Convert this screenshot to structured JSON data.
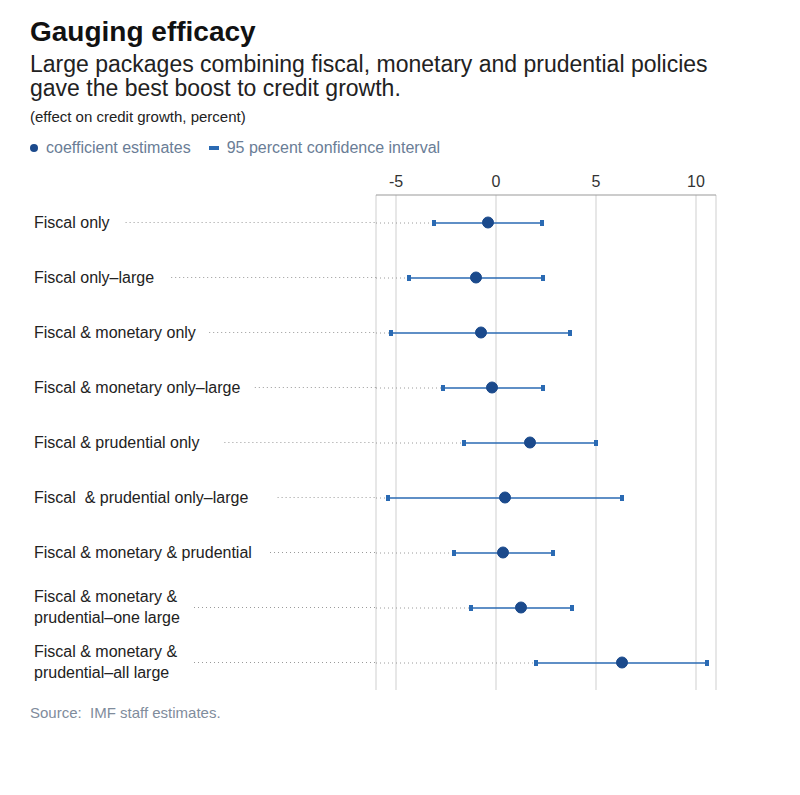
{
  "chart_data": {
    "type": "scatter",
    "title": "Gauging efficacy",
    "subtitle": "Large packages combining fiscal, monetary and prudential policies gave the best boost to credit growth.",
    "note": "(effect on credit growth, percent)",
    "source": "Source:  IMF staff estimates.",
    "orientation": "horizontal",
    "grid": true,
    "legend": "top-left",
    "categories": [
      "Fiscal only",
      "Fiscal only–large",
      "Fiscal & monetary only",
      "Fiscal & monetary only–large",
      "Fiscal & prudential only",
      "Fiscal  & prudential only–large",
      "Fiscal & monetary & prudential",
      "Fiscal & monetary & prudential–one large",
      "Fiscal & monetary & prudential–all large"
    ],
    "series": [
      {
        "name": "coefficient estimates",
        "color": "#1b4a8c",
        "marker": "circle",
        "values": [
          -0.4,
          -1.0,
          -0.75,
          -0.2,
          1.7,
          0.45,
          0.35,
          1.25,
          6.3
        ],
        "error": {
          "name": "95 percent confidence interval",
          "color": "#2a6ab3",
          "low": [
            -3.1,
            -4.35,
            -5.25,
            -2.65,
            -1.6,
            -5.4,
            -2.1,
            -1.25,
            2.0
          ],
          "high": [
            2.3,
            2.35,
            3.7,
            2.35,
            5.0,
            6.3,
            2.85,
            3.8,
            10.55
          ]
        }
      }
    ],
    "xlim": [
      -6,
      11
    ],
    "xticks": [
      -5,
      0,
      5,
      10
    ]
  }
}
